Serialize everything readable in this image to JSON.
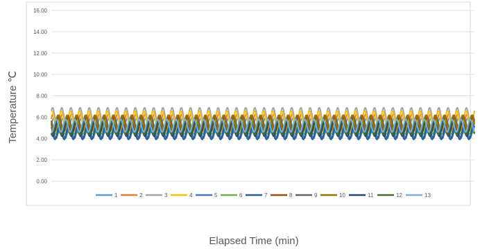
{
  "chart_data": {
    "type": "line",
    "title": "",
    "xlabel": "Elapsed Time (min)",
    "ylabel": "Temperature ℃",
    "ylim": [
      0,
      16
    ],
    "y_ticks": [
      "0.00",
      "2.00",
      "4.00",
      "6.00",
      "8.00",
      "10.00",
      "12.00",
      "14.00",
      "16.00"
    ],
    "grid": "horizontal",
    "legend_position": "bottom",
    "cycles": 46,
    "series": [
      {
        "name": "1",
        "color": "#5b9bd5",
        "min": 4.5,
        "max": 5.9
      },
      {
        "name": "2",
        "color": "#ed7d31",
        "min": 4.8,
        "max": 6.3
      },
      {
        "name": "3",
        "color": "#a5a5a5",
        "min": 5.1,
        "max": 6.9
      },
      {
        "name": "4",
        "color": "#ffc000",
        "min": 4.9,
        "max": 6.6
      },
      {
        "name": "5",
        "color": "#4472c4",
        "min": 4.0,
        "max": 5.4
      },
      {
        "name": "6",
        "color": "#70ad47",
        "min": 4.4,
        "max": 5.7
      },
      {
        "name": "7",
        "color": "#255e91",
        "min": 3.9,
        "max": 5.2
      },
      {
        "name": "8",
        "color": "#9e480e",
        "min": 4.6,
        "max": 6.0
      },
      {
        "name": "9",
        "color": "#636363",
        "min": 4.5,
        "max": 6.2
      },
      {
        "name": "10",
        "color": "#997300",
        "min": 4.7,
        "max": 6.2
      },
      {
        "name": "11",
        "color": "#264478",
        "min": 4.2,
        "max": 5.5
      },
      {
        "name": "12",
        "color": "#43682b",
        "min": 4.3,
        "max": 5.6
      },
      {
        "name": "13",
        "color": "#7cafdd",
        "min": 4.6,
        "max": 5.8
      }
    ]
  }
}
